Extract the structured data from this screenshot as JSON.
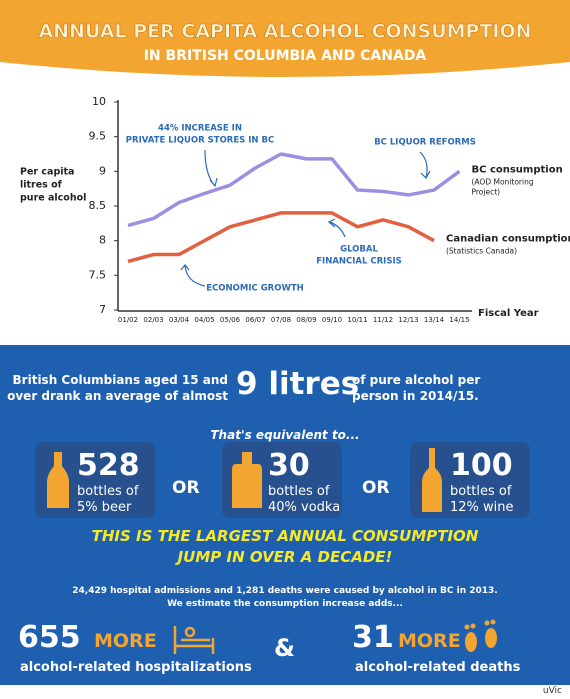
{
  "chart_data": {
    "type": "line",
    "title": "ANNUAL PER CAPITA ALCOHOL CONSUMPTION",
    "subtitle": "IN BRITISH COLUMBIA AND CANADA",
    "y_label": [
      "Per capita",
      "litres of",
      "pure alcohol"
    ],
    "x_label": "Fiscal Year",
    "categories": [
      "01/02",
      "02/03",
      "03/04",
      "04/05",
      "05/06",
      "06/07",
      "07/08",
      "08/09",
      "09/10",
      "10/11",
      "11/12",
      "12/13",
      "13/14",
      "14/15"
    ],
    "series": [
      {
        "name": "BC consumption",
        "source": [
          "(AOD Monitoring",
          "Project)"
        ],
        "color": "#9d8fe0",
        "values": [
          8.22,
          8.32,
          8.55,
          8.68,
          8.8,
          9.05,
          9.25,
          9.18,
          9.18,
          8.73,
          8.71,
          8.66,
          8.73,
          9.0
        ]
      },
      {
        "name": "Canadian consumption",
        "source": [
          "(Statistics Canada)"
        ],
        "color": "#e2603f",
        "values": [
          7.7,
          7.8,
          7.8,
          8.0,
          8.2,
          8.3,
          8.4,
          8.4,
          8.4,
          8.2,
          8.3,
          8.2,
          8.0,
          null
        ]
      }
    ],
    "ylim": [
      7,
      10
    ],
    "yticks": [
      7,
      7.5,
      8,
      8.5,
      9,
      9.5,
      10
    ],
    "annotations": [
      {
        "lines": [
          "44% INCREASE IN",
          "PRIVATE LIQUOR STORES IN BC"
        ]
      },
      {
        "lines": [
          "BC LIQUOR REFORMS"
        ]
      },
      {
        "lines": [
          "GLOBAL",
          "FINANCIAL CRISIS"
        ]
      },
      {
        "lines": [
          "ECONOMIC GROWTH"
        ]
      }
    ]
  },
  "summary": {
    "before": [
      "British Columbians aged 15 and",
      "over drank an average of almost"
    ],
    "highlight": "9 litres",
    "after": [
      "of pure alcohol per",
      "person in 2014/15."
    ]
  },
  "equivalent_intro": "That's equivalent to...",
  "equivalents": [
    {
      "number": "528",
      "lines": [
        "bottles of",
        "5% beer"
      ]
    },
    {
      "number": "30",
      "lines": [
        "bottles of",
        "40% vodka"
      ]
    },
    {
      "number": "100",
      "lines": [
        "bottles of",
        "12% wine"
      ]
    }
  ],
  "separator": "OR",
  "headline": [
    "THIS IS THE LARGEST ANNUAL CONSUMPTION",
    "JUMP IN OVER A DECADE!"
  ],
  "footnote": [
    "24,429 hospital admissions and 1,281 deaths were caused by alcohol in BC in 2013.",
    "We estimate the consumption increase adds..."
  ],
  "outcomes": [
    {
      "number": "655",
      "more": "MORE",
      "label": "alcohol-related hospitalizations"
    },
    {
      "number": "31",
      "more": "MORE",
      "label": "alcohol-related deaths"
    }
  ],
  "joiner": "&",
  "credit": "uVic"
}
